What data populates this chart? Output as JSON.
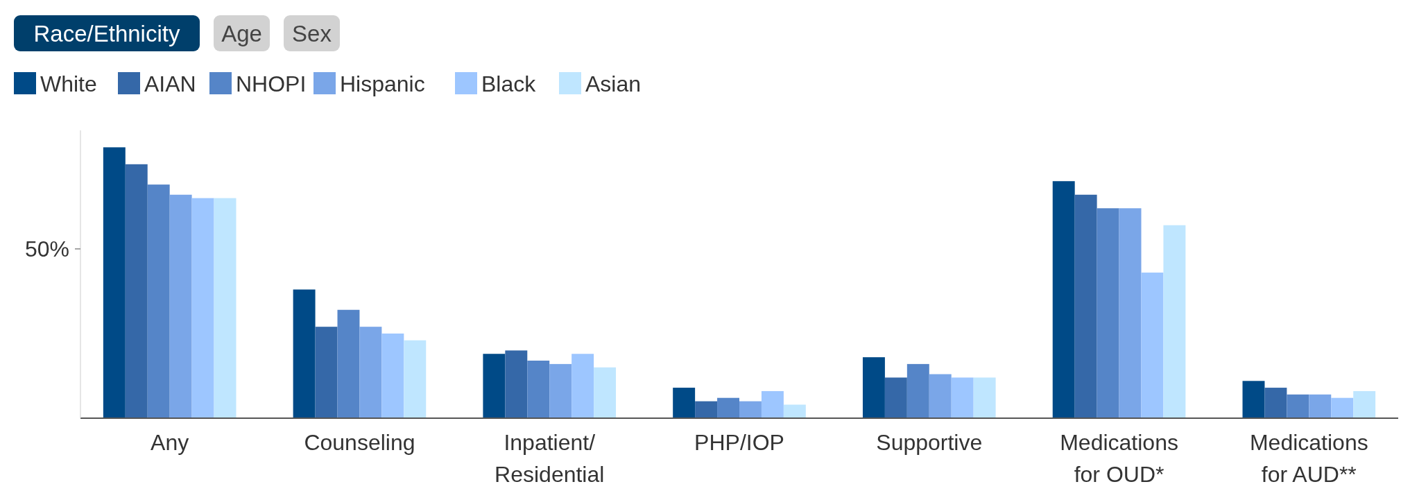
{
  "chart_data": {
    "type": "bar",
    "annotations": [
      "Race/Ethnicity",
      "Age",
      "Sex"
    ],
    "categories": [
      "Any",
      "Counseling",
      "Inpatient/ Residential",
      "PHP/IOP",
      "Supportive",
      "Medications for OUD*",
      "Medications for AUD**"
    ],
    "series": [
      {
        "name": "White",
        "color": "#004a87",
        "values": [
          80,
          38,
          19,
          9,
          18,
          70,
          11
        ]
      },
      {
        "name": "AIAN",
        "color": "#3568a8",
        "values": [
          75,
          27,
          20,
          5,
          12,
          66,
          9
        ]
      },
      {
        "name": "NHOPI",
        "color": "#5585c8",
        "values": [
          69,
          32,
          17,
          6,
          16,
          62,
          7
        ]
      },
      {
        "name": "Hispanic",
        "color": "#7aa6e8",
        "values": [
          66,
          27,
          16,
          5,
          13,
          62,
          7
        ]
      },
      {
        "name": "Black",
        "color": "#9dc6ff",
        "values": [
          65,
          25,
          19,
          8,
          12,
          43,
          6
        ]
      },
      {
        "name": "Asian",
        "color": "#bfe6ff",
        "values": [
          65,
          23,
          15,
          4,
          12,
          57,
          8
        ]
      }
    ],
    "ylim": [
      0,
      85
    ],
    "yticks": [
      {
        "value": 50,
        "label": "50%"
      }
    ],
    "legend": "top left",
    "grid": false
  }
}
